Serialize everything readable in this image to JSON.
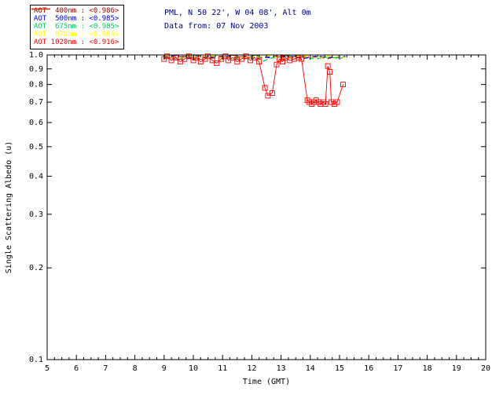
{
  "header": {
    "location": "PML, N 50 22', W 04 08', Alt 0m",
    "date_line": "Data from: 07 Nov 2003",
    "color": "#00008B"
  },
  "chart_data": {
    "type": "line",
    "title": "",
    "xlabel": "Time (GMT)",
    "ylabel": "Single Scattering Albedo (u)",
    "xlim": [
      5,
      20
    ],
    "ylim": [
      0.1,
      1.0
    ],
    "yscale": "log",
    "grid": false,
    "legend_position": "top-left",
    "axis_color": "#000000",
    "xticks": [
      5,
      6,
      7,
      8,
      9,
      10,
      11,
      12,
      13,
      14,
      15,
      16,
      17,
      18,
      19,
      20
    ],
    "yticks": [
      1.0,
      0.9,
      0.8,
      0.7,
      0.6,
      0.5,
      0.4,
      0.3,
      0.2,
      0.1
    ],
    "series": [
      {
        "id": "400nm",
        "name": "AOT 400nm",
        "mean": "<0.986>",
        "legend_label": "AOT  400nm : <0.986>",
        "color": "#990000",
        "dash": true,
        "marker": null,
        "points": [
          [
            9.0,
            0.99
          ],
          [
            9.4,
            0.98
          ],
          [
            9.8,
            0.995
          ],
          [
            10.2,
            0.975
          ],
          [
            10.6,
            0.985
          ],
          [
            11.0,
            0.99
          ],
          [
            11.4,
            0.98
          ],
          [
            11.8,
            0.99
          ],
          [
            12.2,
            0.975
          ],
          [
            12.6,
            0.985
          ],
          [
            13.0,
            0.995
          ],
          [
            13.4,
            0.98
          ],
          [
            13.8,
            0.99
          ],
          [
            14.2,
            0.985
          ],
          [
            14.6,
            0.975
          ],
          [
            15.0,
            0.99
          ],
          [
            15.2,
            0.985
          ]
        ]
      },
      {
        "id": "500nm",
        "name": "AOT 500nm",
        "mean": "<0.985>",
        "legend_label": "AOT  500nm : <0.985>",
        "color": "#0000EE",
        "dash": true,
        "marker": null,
        "points": [
          [
            9.0,
            0.985
          ],
          [
            9.4,
            0.995
          ],
          [
            9.8,
            0.975
          ],
          [
            10.2,
            0.99
          ],
          [
            10.6,
            0.98
          ],
          [
            11.0,
            0.985
          ],
          [
            11.4,
            0.995
          ],
          [
            11.8,
            0.975
          ],
          [
            12.2,
            0.99
          ],
          [
            12.6,
            0.98
          ],
          [
            13.0,
            0.985
          ],
          [
            13.4,
            0.99
          ],
          [
            13.8,
            0.975
          ],
          [
            14.2,
            0.99
          ],
          [
            14.6,
            0.985
          ],
          [
            15.0,
            0.98
          ],
          [
            15.2,
            0.99
          ]
        ]
      },
      {
        "id": "675nm",
        "name": "AOT 675nm",
        "mean": "<0.985>",
        "legend_label": "AOT  675nm : <0.985>",
        "color": "#00D060",
        "dash": true,
        "marker": null,
        "points": [
          [
            9.0,
            0.98
          ],
          [
            9.4,
            0.97
          ],
          [
            9.8,
            0.985
          ],
          [
            10.2,
            0.995
          ],
          [
            10.6,
            0.975
          ],
          [
            11.0,
            0.985
          ],
          [
            11.4,
            0.97
          ],
          [
            11.8,
            0.985
          ],
          [
            12.2,
            0.995
          ],
          [
            12.4,
            0.955
          ],
          [
            12.6,
            0.975
          ],
          [
            13.0,
            0.985
          ],
          [
            13.4,
            0.995
          ],
          [
            13.8,
            0.98
          ],
          [
            14.2,
            0.97
          ],
          [
            14.6,
            0.985
          ],
          [
            15.0,
            0.975
          ],
          [
            15.2,
            0.985
          ]
        ]
      },
      {
        "id": "870nm",
        "name": "AOT 870nm",
        "mean": "<0.984>",
        "legend_label": "AOT  870nm : <0.984>",
        "color": "#FFFF00",
        "dash": true,
        "marker": null,
        "points": [
          [
            9.0,
            0.995
          ],
          [
            9.4,
            0.975
          ],
          [
            9.8,
            0.99
          ],
          [
            10.2,
            0.98
          ],
          [
            10.6,
            0.995
          ],
          [
            11.0,
            0.975
          ],
          [
            11.4,
            0.99
          ],
          [
            11.8,
            0.98
          ],
          [
            12.2,
            0.985
          ],
          [
            12.6,
            0.995
          ],
          [
            13.0,
            0.975
          ],
          [
            13.4,
            0.985
          ],
          [
            13.8,
            0.995
          ],
          [
            14.2,
            0.975
          ],
          [
            14.6,
            0.99
          ],
          [
            15.0,
            0.985
          ],
          [
            15.2,
            0.98
          ]
        ]
      },
      {
        "id": "1020nm",
        "name": "AOT 1020nm",
        "mean": "<0.916>",
        "legend_label": "AOT 1020nm : <0.916>",
        "color": "#FF0000",
        "dash": false,
        "marker": "square",
        "points": [
          [
            9.0,
            0.97
          ],
          [
            9.1,
            0.99
          ],
          [
            9.25,
            0.96
          ],
          [
            9.4,
            0.98
          ],
          [
            9.55,
            0.95
          ],
          [
            9.7,
            0.97
          ],
          [
            9.85,
            0.99
          ],
          [
            10.0,
            0.96
          ],
          [
            10.1,
            0.98
          ],
          [
            10.25,
            0.95
          ],
          [
            10.4,
            0.97
          ],
          [
            10.5,
            0.99
          ],
          [
            10.65,
            0.96
          ],
          [
            10.8,
            0.94
          ],
          [
            10.95,
            0.97
          ],
          [
            11.1,
            0.99
          ],
          [
            11.2,
            0.96
          ],
          [
            11.35,
            0.98
          ],
          [
            11.5,
            0.95
          ],
          [
            11.65,
            0.97
          ],
          [
            11.8,
            0.99
          ],
          [
            11.95,
            0.96
          ],
          [
            12.1,
            0.98
          ],
          [
            12.25,
            0.95
          ],
          [
            12.45,
            0.78
          ],
          [
            12.55,
            0.735
          ],
          [
            12.7,
            0.75
          ],
          [
            12.85,
            0.93
          ],
          [
            12.95,
            0.97
          ],
          [
            13.05,
            0.95
          ],
          [
            13.15,
            0.98
          ],
          [
            13.3,
            0.96
          ],
          [
            13.45,
            0.97
          ],
          [
            13.6,
            0.98
          ],
          [
            13.7,
            0.97
          ],
          [
            13.9,
            0.71
          ],
          [
            13.97,
            0.7
          ],
          [
            14.05,
            0.69
          ],
          [
            14.12,
            0.7
          ],
          [
            14.2,
            0.71
          ],
          [
            14.28,
            0.7
          ],
          [
            14.35,
            0.69
          ],
          [
            14.45,
            0.7
          ],
          [
            14.52,
            0.69
          ],
          [
            14.6,
            0.92
          ],
          [
            14.67,
            0.88
          ],
          [
            14.72,
            0.7
          ],
          [
            14.82,
            0.69
          ],
          [
            14.92,
            0.7
          ],
          [
            15.12,
            0.8
          ]
        ]
      }
    ]
  }
}
